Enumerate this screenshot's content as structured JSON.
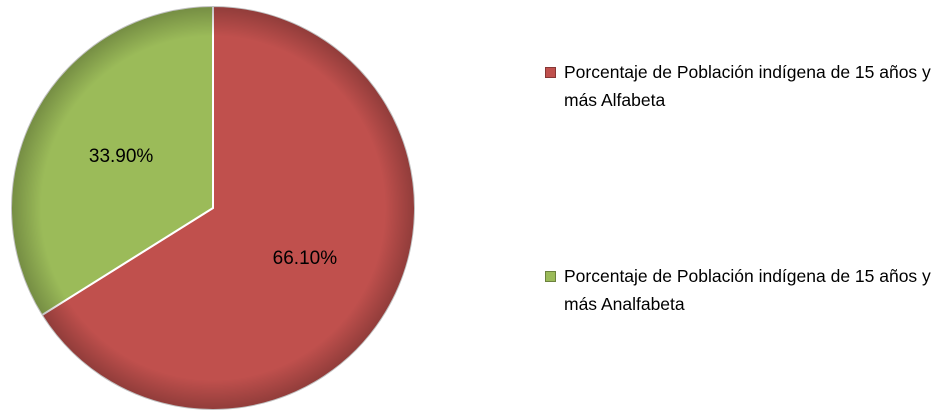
{
  "chart_data": {
    "type": "pie",
    "categories": [
      "Porcentaje de Población indígena de 15 años y más Alfabeta",
      "Porcentaje de Población indígena de 15 años y más Analfabeta"
    ],
    "values": [
      66.1,
      33.9
    ],
    "value_labels": [
      "66.10%",
      "33.90%"
    ],
    "colors": [
      "#c0504d",
      "#9bbb59"
    ],
    "legend": "right"
  }
}
